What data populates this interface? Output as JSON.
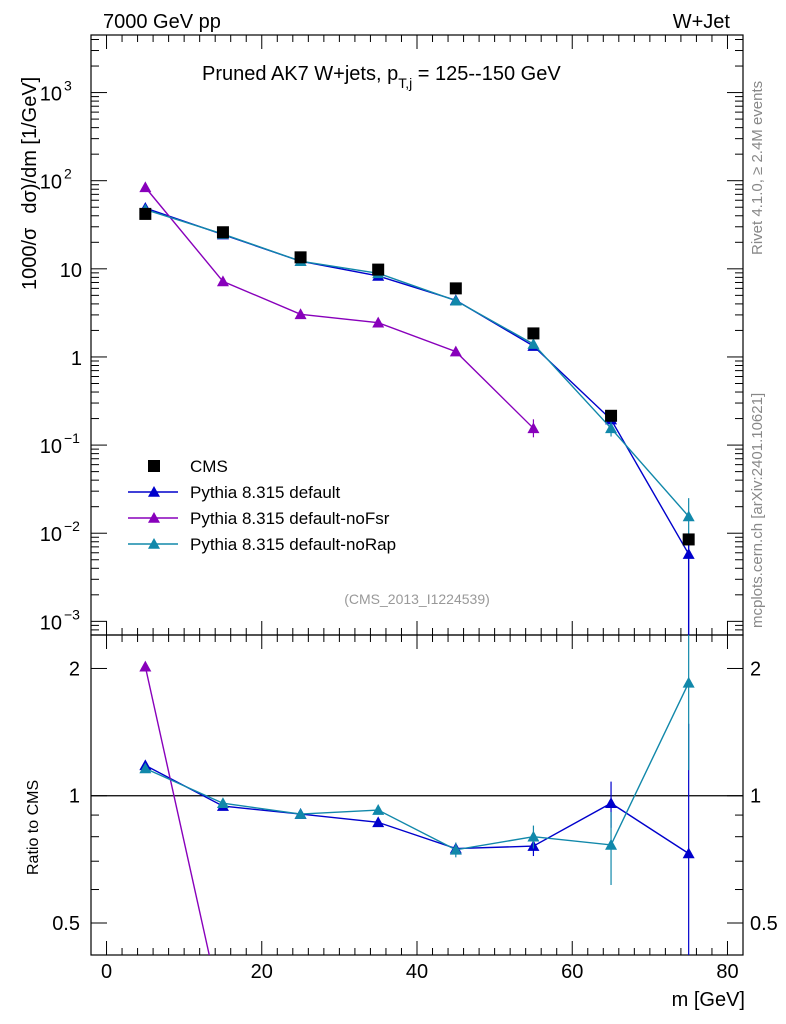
{
  "header": {
    "left": "7000 GeV pp",
    "right": "W+Jet"
  },
  "side_labels": {
    "rivet": "Rivet 4.1.0, ≥ 2.4M events",
    "mcplots": "mcplots.cern.ch [arXiv:2401.10621]"
  },
  "chart_data": {
    "type": "line",
    "title": "Pruned AK7 W+jets, p_T,j = 125--150 GeV",
    "title_parts": {
      "main": "Pruned AK7 W+jets, p",
      "sub": "T,j",
      "rest": " = 125--150 GeV"
    },
    "analysis_id": "(CMS_2013_I1224539)",
    "xlabel": "m [GeV]",
    "ylabel": {
      "prefix": "1000/σ",
      "rest": "dσ)/dm [1/GeV]"
    },
    "ratio_ylabel": "Ratio to CMS",
    "xlim": [
      -2,
      82
    ],
    "ylim": [
      0.0007,
      4500
    ],
    "ratio_ylim": [
      0.42,
      2.4
    ],
    "x_ticks": [
      "0",
      "20",
      "40",
      "60",
      "80"
    ],
    "x_tick_values": [
      0,
      20,
      40,
      60,
      80
    ],
    "y_ticks": [
      {
        "value": 1000,
        "base": "10",
        "exp": "3"
      },
      {
        "value": 100,
        "base": "10",
        "exp": "2"
      },
      {
        "value": 10,
        "base": "10",
        "exp": ""
      },
      {
        "value": 1,
        "base": "1",
        "exp": ""
      },
      {
        "value": 0.1,
        "base": "10",
        "exp": "−1"
      },
      {
        "value": 0.01,
        "base": "10",
        "exp": "−2"
      },
      {
        "value": 0.001,
        "base": "10",
        "exp": "−3"
      }
    ],
    "ratio_ticks": [
      {
        "value": 2,
        "label": "2"
      },
      {
        "value": 1,
        "label": "1"
      },
      {
        "value": 0.5,
        "label": "0.5"
      }
    ],
    "data": {
      "name": "CMS",
      "color": "#000000",
      "x": [
        5,
        15,
        25,
        35,
        45,
        55,
        65,
        75
      ],
      "y": [
        42,
        26,
        13.5,
        9.8,
        6.0,
        1.85,
        0.215,
        0.0085
      ]
    },
    "series": [
      {
        "name": "Pythia 8.315 default",
        "color": "#0000cc",
        "x": [
          5,
          15,
          25,
          35,
          45,
          55,
          65,
          75
        ],
        "y": [
          49,
          24.5,
          12.2,
          8.3,
          4.4,
          1.33,
          0.195,
          0.0058
        ],
        "ratio": [
          1.18,
          0.945,
          0.905,
          0.865,
          0.75,
          0.76,
          0.96,
          0.73
        ],
        "ratio_err": [
          0.01,
          0.01,
          0.01,
          0.015,
          0.02,
          0.04,
          0.12,
          0.75
        ]
      },
      {
        "name": "Pythia 8.315 default-noFsr",
        "color": "#8800bb",
        "x": [
          5,
          15,
          25,
          35,
          45,
          55
        ],
        "y": [
          84,
          7.2,
          3.05,
          2.45,
          1.15,
          0.155
        ],
        "ratio": [
          2.02,
          0.3
        ],
        "ratio_x": [
          5,
          15
        ],
        "ratio_err": [
          0.0,
          0.0
        ]
      },
      {
        "name": "Pythia 8.315 default-noRap",
        "color": "#1188aa",
        "x": [
          5,
          15,
          25,
          35,
          45,
          55,
          65,
          75
        ],
        "y": [
          47,
          24.8,
          12.2,
          8.9,
          4.35,
          1.4,
          0.155,
          0.0155
        ],
        "ratio": [
          1.16,
          0.96,
          0.905,
          0.925,
          0.745,
          0.8,
          0.765,
          1.85
        ],
        "ratio_err": [
          0.01,
          0.01,
          0.01,
          0.015,
          0.03,
          0.05,
          0.15,
          0.7
        ]
      }
    ],
    "legend": [
      "CMS",
      "Pythia 8.315 default",
      "Pythia 8.315 default-noFsr",
      "Pythia 8.315 default-noRap"
    ],
    "legend_position": "lower-left"
  }
}
